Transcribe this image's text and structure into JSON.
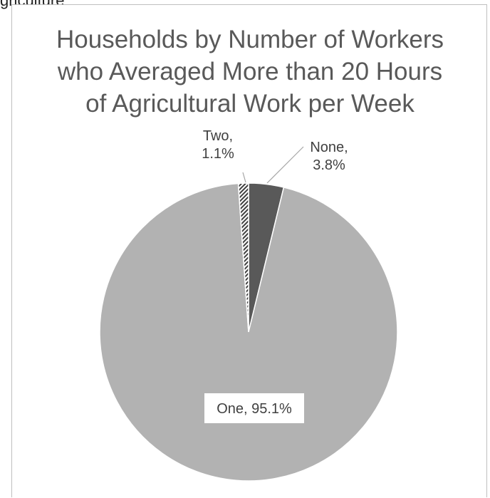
{
  "caption_fragment": "griculture",
  "chart_data": {
    "type": "pie",
    "title_lines": [
      "Households by Number of Workers",
      "who Averaged More than 20 Hours",
      "of Agricultural Work per Week"
    ],
    "slices": [
      {
        "label": "None",
        "value": 3.8,
        "display_name": "None,",
        "display_value": "3.8%",
        "color": "#595959",
        "pattern": "solid"
      },
      {
        "label": "One",
        "value": 95.1,
        "display_text": "One, 95.1%",
        "color": "#b2b2b2",
        "pattern": "solid"
      },
      {
        "label": "Two",
        "value": 1.1,
        "display_name": "Two,",
        "display_value": "1.1%",
        "color": "#404040",
        "pattern": "diagonal-hatch"
      }
    ],
    "start_angle_deg": 0,
    "direction": "clockwise",
    "legend": "none"
  }
}
